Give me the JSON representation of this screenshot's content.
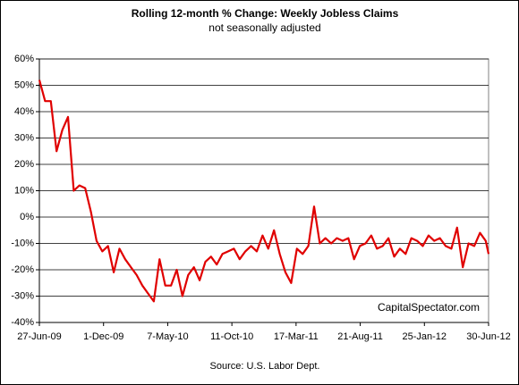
{
  "chart_data": {
    "type": "line",
    "title": "Rolling 12-month %  Change: Weekly Jobless Claims",
    "subtitle": "not seasonally adjusted",
    "annotation": "CapitalSpectator.com",
    "source": "Source: U.S. Labor Dept.",
    "x": [
      "27-Jun-09",
      "11-Jul-09",
      "25-Jul-09",
      "8-Aug-09",
      "22-Aug-09",
      "5-Sep-09",
      "19-Sep-09",
      "3-Oct-09",
      "17-Oct-09",
      "31-Oct-09",
      "14-Nov-09",
      "28-Nov-09",
      "12-Dec-09",
      "26-Dec-09",
      "9-Jan-10",
      "23-Jan-10",
      "6-Feb-10",
      "20-Feb-10",
      "6-Mar-10",
      "20-Mar-10",
      "3-Apr-10",
      "17-Apr-10",
      "1-May-10",
      "15-May-10",
      "29-May-10",
      "12-Jun-10",
      "26-Jun-10",
      "10-Jul-10",
      "24-Jul-10",
      "7-Aug-10",
      "21-Aug-10",
      "4-Sep-10",
      "18-Sep-10",
      "2-Oct-10",
      "16-Oct-10",
      "30-Oct-10",
      "13-Nov-10",
      "27-Nov-10",
      "11-Dec-10",
      "25-Dec-10",
      "8-Jan-11",
      "22-Jan-11",
      "5-Feb-11",
      "19-Feb-11",
      "5-Mar-11",
      "19-Mar-11",
      "2-Apr-11",
      "16-Apr-11",
      "30-Apr-11",
      "14-May-11",
      "28-May-11",
      "11-Jun-11",
      "25-Jun-11",
      "9-Jul-11",
      "23-Jul-11",
      "6-Aug-11",
      "20-Aug-11",
      "3-Sep-11",
      "17-Sep-11",
      "1-Oct-11",
      "15-Oct-11",
      "29-Oct-11",
      "12-Nov-11",
      "26-Nov-11",
      "10-Dec-11",
      "24-Dec-11",
      "7-Jan-12",
      "21-Jan-12",
      "4-Feb-12",
      "18-Feb-12",
      "3-Mar-12",
      "17-Mar-12",
      "31-Mar-12",
      "14-Apr-12",
      "28-Apr-12",
      "12-May-12",
      "26-May-12",
      "9-Jun-12",
      "23-Jun-12",
      "30-Jun-12"
    ],
    "series": [
      {
        "name": "Rolling 12-month % change",
        "color": "#e00000",
        "values": [
          52,
          44,
          44,
          25,
          33,
          38,
          10,
          12,
          11,
          2,
          -9,
          -13,
          -11,
          -21,
          -12,
          -16,
          -19,
          -22,
          -26,
          -29,
          -32,
          -16,
          -26,
          -26,
          -20,
          -30,
          -22,
          -19,
          -24,
          -17,
          -15,
          -18,
          -14,
          -13,
          -12,
          -16,
          -13,
          -11,
          -13,
          -7,
          -12,
          -5,
          -14,
          -21,
          -25,
          -12,
          -14,
          -11,
          4,
          -10,
          -8,
          -10,
          -8,
          -9,
          -8,
          -16,
          -11,
          -10,
          -7,
          -12,
          -11,
          -8,
          -15,
          -12,
          -14,
          -8,
          -9,
          -11,
          -7,
          -9,
          -8,
          -11,
          -12,
          -4,
          -19,
          -10,
          -11,
          -6,
          -9,
          -14
        ]
      }
    ],
    "xlim": [
      "27-Jun-09",
      "30-Jun-12"
    ],
    "xticks": [
      "27-Jun-09",
      "1-Dec-09",
      "7-May-10",
      "11-Oct-10",
      "17-Mar-11",
      "21-Aug-11",
      "25-Jan-12",
      "30-Jun-12"
    ],
    "ylim": [
      -40,
      60
    ],
    "yticks": [
      {
        "value": -40,
        "label": "-40%"
      },
      {
        "value": -30,
        "label": "-30%"
      },
      {
        "value": -20,
        "label": "-20%"
      },
      {
        "value": -10,
        "label": "-10%"
      },
      {
        "value": 0,
        "label": "0%"
      },
      {
        "value": 10,
        "label": "10%"
      },
      {
        "value": 20,
        "label": "20%"
      },
      {
        "value": 30,
        "label": "30%"
      },
      {
        "value": 40,
        "label": "40%"
      },
      {
        "value": 50,
        "label": "50%"
      },
      {
        "value": 60,
        "label": "60%"
      }
    ],
    "grid": true
  }
}
